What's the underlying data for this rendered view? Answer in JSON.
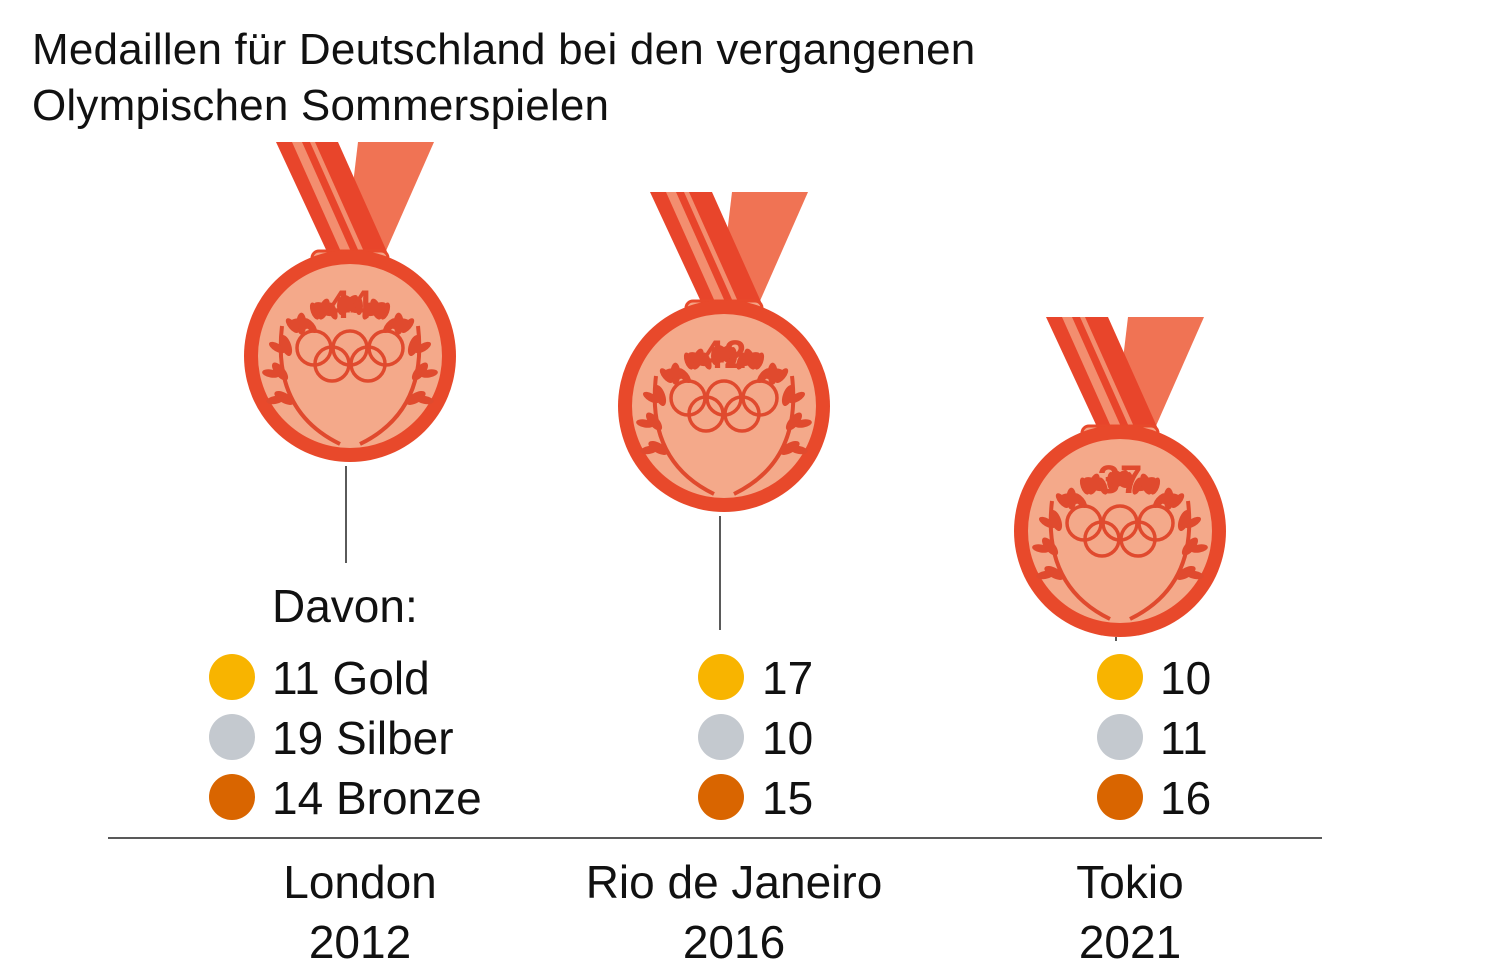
{
  "title_line1": "Medaillen für Deutschland bei den vergangenen",
  "title_line2": "Olympischen Sommerspielen",
  "breakdown_label": "Davon:",
  "colors": {
    "gold": "#f8b400",
    "silver": "#c4c9cf",
    "bronze": "#d96500",
    "medal_ring": "#e8492b",
    "medal_face": "#f5a385",
    "medal_inner": "#f4a98a",
    "medal_emblem": "#e04a2e",
    "ribbon_dark": "#e8452b",
    "ribbon_light": "#f07354",
    "ribbon_stripe": "#f38e6f"
  },
  "chart_data": {
    "type": "bar",
    "title": "Medaillen für Deutschland bei den vergangenen Olympischen Sommerspielen",
    "categories": [
      {
        "city": "London",
        "year": "2012"
      },
      {
        "city": "Rio de Janeiro",
        "year": "2016"
      },
      {
        "city": "Tokio",
        "year": "2021"
      }
    ],
    "totals": [
      44,
      42,
      37
    ],
    "series": [
      {
        "name": "Gold",
        "values": [
          11,
          17,
          10
        ]
      },
      {
        "name": "Silber",
        "values": [
          19,
          10,
          11
        ]
      },
      {
        "name": "Bronze",
        "values": [
          14,
          15,
          16
        ]
      }
    ]
  }
}
